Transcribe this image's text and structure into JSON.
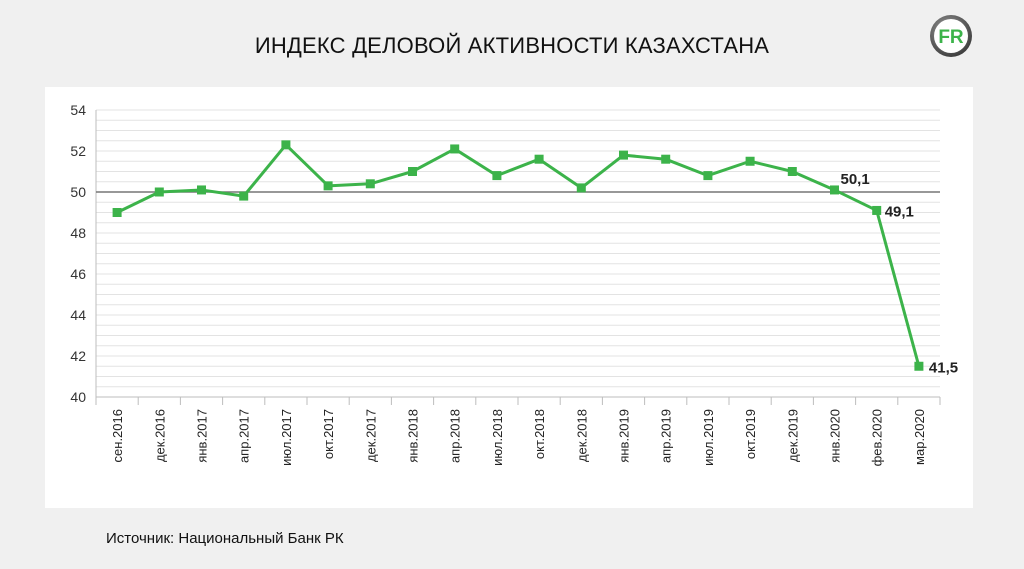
{
  "title": "ИНДЕКС ДЕЛОВОЙ АКТИВНОСТИ КАЗАХСТАНА",
  "logo_text": "FR",
  "source": "Источник: Национальный Банк РК",
  "colors": {
    "line": "#3cb34a",
    "reference": "#777777",
    "grid": "#e3e3e3"
  },
  "chart_data": {
    "type": "line",
    "title": "ИНДЕКС ДЕЛОВОЙ АКТИВНОСТИ КАЗАХСТАНА",
    "xlabel": "",
    "ylabel": "",
    "ylim": [
      40,
      54
    ],
    "yticks": [
      40,
      42,
      44,
      46,
      48,
      50,
      52,
      54
    ],
    "grid": true,
    "reference_line": 50,
    "categories": [
      "сен.2016",
      "дек.2016",
      "янв.2017",
      "апр.2017",
      "июл.2017",
      "окт.2017",
      "дек.2017",
      "янв.2018",
      "апр.2018",
      "июл.2018",
      "окт.2018",
      "дек.2018",
      "янв.2019",
      "апр.2019",
      "июл.2019",
      "окт.2019",
      "дек.2019",
      "янв.2020",
      "фев.2020",
      "мар.2020"
    ],
    "series": [
      {
        "values": [
          49.0,
          50.0,
          50.1,
          49.8,
          52.3,
          50.3,
          50.4,
          51.0,
          52.1,
          50.8,
          51.6,
          50.2,
          51.8,
          51.6,
          50.8,
          51.5,
          51.0,
          50.1,
          49.1,
          41.5
        ]
      }
    ],
    "data_labels": [
      {
        "index": 17,
        "text": "50,1"
      },
      {
        "index": 18,
        "text": "49,1"
      },
      {
        "index": 19,
        "text": "41,5"
      }
    ]
  }
}
